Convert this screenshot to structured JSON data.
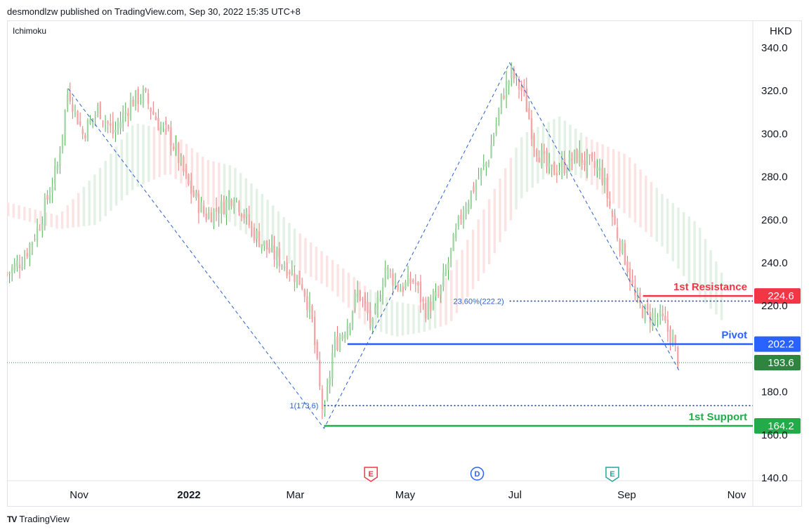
{
  "header": {
    "published": "desmondlzw published on TradingView.com, Sep 30, 2022 15:35 UTC+8"
  },
  "footer": {
    "brand": "TradingView"
  },
  "colors": {
    "up": "#26a69a",
    "down": "#ef5350",
    "pivot": "#2962ff",
    "resistance": "#f23645",
    "support": "#22ab48",
    "current": "#2e8540",
    "fib": "#2a62c9",
    "cloud_green": "#dff0e1",
    "cloud_red": "#fbe0e0"
  },
  "chart_data": {
    "type": "candlestick",
    "indicator_label": "Ichimoku",
    "currency": "HKD",
    "ylim": [
      140,
      340
    ],
    "y_ticks": [
      "340.0",
      "320.0",
      "300.0",
      "280.0",
      "260.0",
      "240.0",
      "220.0",
      "180.0",
      "160.0",
      "140.0"
    ],
    "x_ticks": [
      "Nov",
      "2022",
      "Mar",
      "May",
      "Jul",
      "Sep",
      "Nov"
    ],
    "x_dates": [
      "2021-11-01",
      "2022-01-01",
      "2022-03-01",
      "2022-05-01",
      "2022-07-01",
      "2022-09-01",
      "2022-11-01"
    ],
    "date_range": [
      "2021-09-22",
      "2022-11-10"
    ],
    "price_path": [
      [
        "2021-09-22",
        235
      ],
      [
        "2021-10-01",
        242
      ],
      [
        "2021-10-10",
        258
      ],
      [
        "2021-10-20",
        285
      ],
      [
        "2021-10-26",
        321
      ],
      [
        "2021-11-03",
        300
      ],
      [
        "2021-11-12",
        312
      ],
      [
        "2021-11-20",
        300
      ],
      [
        "2021-11-30",
        315
      ],
      [
        "2021-12-07",
        318
      ],
      [
        "2021-12-15",
        305
      ],
      [
        "2021-12-22",
        298
      ],
      [
        "2022-01-01",
        275
      ],
      [
        "2022-01-10",
        262
      ],
      [
        "2022-01-18",
        265
      ],
      [
        "2022-01-26",
        272
      ],
      [
        "2022-02-05",
        255
      ],
      [
        "2022-02-15",
        245
      ],
      [
        "2022-02-25",
        238
      ],
      [
        "2022-03-05",
        230
      ],
      [
        "2022-03-10",
        215
      ],
      [
        "2022-03-15",
        178
      ],
      [
        "2022-03-17",
        168
      ],
      [
        "2022-03-22",
        200
      ],
      [
        "2022-03-30",
        212
      ],
      [
        "2022-04-05",
        227
      ],
      [
        "2022-04-13",
        210
      ],
      [
        "2022-04-20",
        238
      ],
      [
        "2022-04-28",
        228
      ],
      [
        "2022-05-06",
        232
      ],
      [
        "2022-05-12",
        218
      ],
      [
        "2022-05-20",
        225
      ],
      [
        "2022-06-01",
        262
      ],
      [
        "2022-06-09",
        277
      ],
      [
        "2022-06-16",
        288
      ],
      [
        "2022-06-24",
        318
      ],
      [
        "2022-06-29",
        328
      ],
      [
        "2022-07-06",
        318
      ],
      [
        "2022-07-12",
        295
      ],
      [
        "2022-07-20",
        282
      ],
      [
        "2022-07-28",
        285
      ],
      [
        "2022-08-05",
        290
      ],
      [
        "2022-08-12",
        285
      ],
      [
        "2022-08-18",
        282
      ],
      [
        "2022-08-25",
        258
      ],
      [
        "2022-09-01",
        240
      ],
      [
        "2022-09-06",
        222
      ],
      [
        "2022-09-12",
        216
      ],
      [
        "2022-09-20",
        214
      ],
      [
        "2022-09-26",
        205
      ],
      [
        "2022-09-30",
        193.6
      ]
    ],
    "kumo_upper": [
      [
        "2021-09-22",
        268
      ],
      [
        "2021-10-20",
        262
      ],
      [
        "2021-11-10",
        282
      ],
      [
        "2021-12-01",
        305
      ],
      [
        "2021-12-20",
        302
      ],
      [
        "2022-01-10",
        288
      ],
      [
        "2022-01-25",
        285
      ],
      [
        "2022-02-10",
        272
      ],
      [
        "2022-03-01",
        255
      ],
      [
        "2022-03-20",
        242
      ],
      [
        "2022-04-10",
        228
      ],
      [
        "2022-04-25",
        222
      ],
      [
        "2022-05-10",
        220
      ],
      [
        "2022-05-25",
        235
      ],
      [
        "2022-06-15",
        268
      ],
      [
        "2022-07-05",
        300
      ],
      [
        "2022-07-25",
        308
      ],
      [
        "2022-08-10",
        298
      ],
      [
        "2022-09-01",
        290
      ],
      [
        "2022-09-20",
        272
      ],
      [
        "2022-10-10",
        258
      ],
      [
        "2022-10-25",
        232
      ]
    ],
    "kumo_lower": [
      [
        "2021-09-22",
        262
      ],
      [
        "2021-10-20",
        256
      ],
      [
        "2021-11-10",
        258
      ],
      [
        "2021-12-01",
        275
      ],
      [
        "2021-12-20",
        282
      ],
      [
        "2022-01-10",
        268
      ],
      [
        "2022-01-25",
        258
      ],
      [
        "2022-02-10",
        248
      ],
      [
        "2022-03-01",
        238
      ],
      [
        "2022-03-20",
        228
      ],
      [
        "2022-04-10",
        210
      ],
      [
        "2022-04-25",
        206
      ],
      [
        "2022-05-10",
        208
      ],
      [
        "2022-05-25",
        212
      ],
      [
        "2022-06-15",
        238
      ],
      [
        "2022-07-05",
        272
      ],
      [
        "2022-07-25",
        285
      ],
      [
        "2022-08-10",
        278
      ],
      [
        "2022-09-01",
        262
      ],
      [
        "2022-09-20",
        248
      ],
      [
        "2022-10-10",
        225
      ],
      [
        "2022-10-25",
        212
      ]
    ],
    "zigzag": [
      [
        "2021-10-26",
        321
      ],
      [
        "2022-03-17",
        163
      ],
      [
        "2022-06-28",
        333
      ],
      [
        "2022-09-30",
        190
      ]
    ],
    "levels": [
      {
        "key": "resistance",
        "name": "1st Resistance",
        "price": 224.6,
        "label": "224.6",
        "start": "2022-09-10",
        "style": "solid"
      },
      {
        "key": "pivot",
        "name": "Pivot",
        "price": 202.2,
        "label": "202.2",
        "start": "2022-03-30",
        "style": "solid"
      },
      {
        "key": "support",
        "name": "1st Support",
        "price": 164.2,
        "label": "164.2",
        "start": "2022-03-17",
        "style": "solid"
      }
    ],
    "current_price": {
      "price": 193.6,
      "label": "193.6"
    },
    "fib_levels": [
      {
        "label": "23.60%(222.2)",
        "price": 222.2,
        "start": "2022-06-28"
      },
      {
        "label": "1(173.6)",
        "price": 173.6,
        "start": "2022-03-17"
      }
    ],
    "events": [
      {
        "letter": "E",
        "date": "2022-04-12",
        "style": "earnings-red"
      },
      {
        "letter": "D",
        "date": "2022-06-10",
        "style": "dividend-blue"
      },
      {
        "letter": "E",
        "date": "2022-08-24",
        "style": "earnings-green"
      }
    ]
  }
}
